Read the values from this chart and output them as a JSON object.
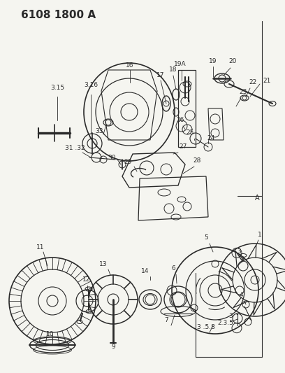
{
  "title": "6108 1800 A",
  "bg": "#f5f5f0",
  "lc": "#2a2a2a",
  "tc": "#2a2a2a",
  "fw": 4.08,
  "fh": 5.33,
  "dpi": 100,
  "tfs": 10,
  "lfs": 6.5
}
